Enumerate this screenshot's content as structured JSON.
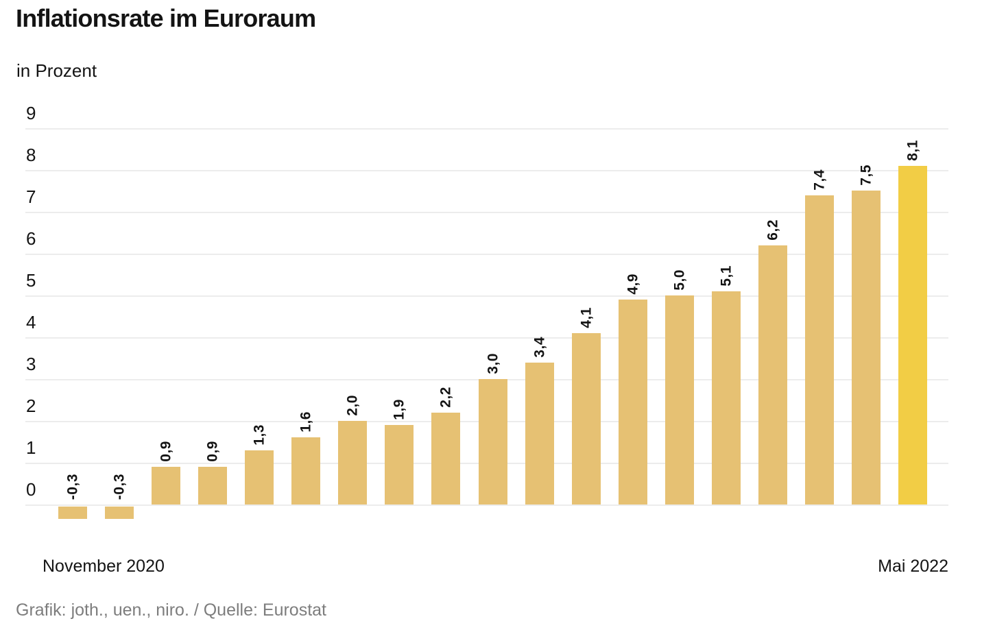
{
  "page": {
    "title": "Inflationsrate im Euroraum",
    "subtitle": "in Prozent",
    "credit": "Grafik: joth., uen., niro. / Quelle: Eurostat"
  },
  "chart_data": {
    "type": "bar",
    "title": "Inflationsrate im Euroraum",
    "unit_label": "in Prozent",
    "values": [
      -0.3,
      -0.3,
      0.9,
      0.9,
      1.3,
      1.6,
      2.0,
      1.9,
      2.2,
      3.0,
      3.4,
      4.1,
      4.9,
      5.0,
      5.1,
      6.2,
      7.4,
      7.5,
      8.1
    ],
    "value_labels": [
      "-0,3",
      "-0,3",
      "0,9",
      "0,9",
      "1,3",
      "1,6",
      "2,0",
      "1,9",
      "2,2",
      "3,0",
      "3,4",
      "4,1",
      "4,9",
      "5,0",
      "5,1",
      "6,2",
      "7,4",
      "7,5",
      "8,1"
    ],
    "highlight_index": 18,
    "x_axis": {
      "start_label": "November 2020",
      "end_label": "Mai 2022"
    },
    "y_axis": {
      "tick_labels": [
        "0",
        "1",
        "2",
        "3",
        "4",
        "5",
        "6",
        "7",
        "8",
        "9"
      ],
      "min": 0,
      "max": 9,
      "grid": true
    },
    "legend_position": "none",
    "source": "Eurostat",
    "colors": {
      "bar": "#e6c173",
      "bar_highlight": "#f2cd45",
      "grid": "#ececec",
      "text": "#141414",
      "credit": "#7d7d7d",
      "background": "#ffffff"
    }
  }
}
